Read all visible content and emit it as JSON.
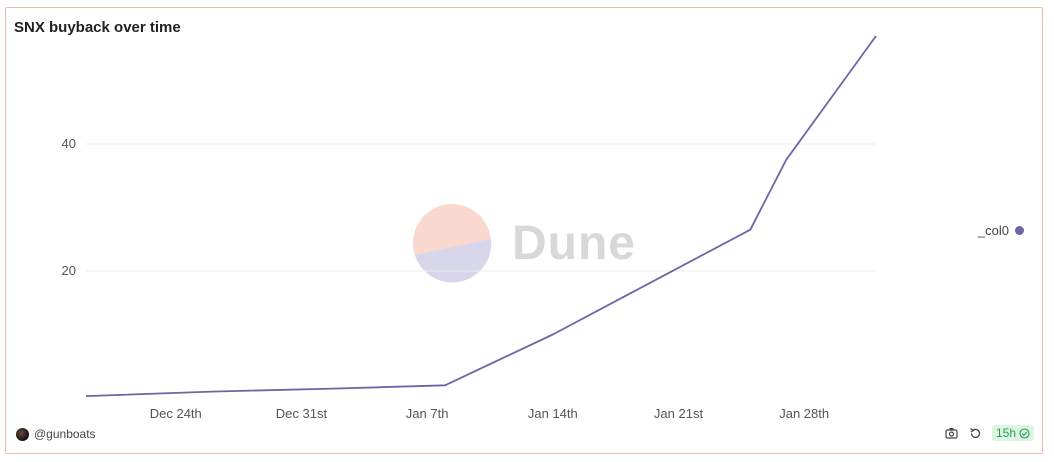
{
  "header": {
    "title": "SNX buyback over time"
  },
  "footer": {
    "user": "@gunboats",
    "age": "15h"
  },
  "watermark": {
    "text": "Dune"
  },
  "colors": {
    "line": "#6f64a6",
    "grid": "#ececec",
    "axis_text": "#555555",
    "border": "#f0b9a8",
    "badge_text": "#2a9a4f"
  },
  "icons": {
    "camera": "camera-icon",
    "refresh": "refresh-icon",
    "check": "check-circle-icon"
  },
  "chart_data": {
    "type": "line",
    "title": "SNX buyback over time",
    "xlabel": "",
    "ylabel": "",
    "x_range": [
      "2023-12-19",
      "2024-02-01"
    ],
    "ylim": [
      0,
      57
    ],
    "y_ticks": [
      20,
      40
    ],
    "x_ticks": [
      {
        "date": "2023-12-24",
        "label": "Dec 24th"
      },
      {
        "date": "2023-12-31",
        "label": "Dec 31st"
      },
      {
        "date": "2024-01-07",
        "label": "Jan 7th"
      },
      {
        "date": "2024-01-14",
        "label": "Jan 14th"
      },
      {
        "date": "2024-01-21",
        "label": "Jan 21st"
      },
      {
        "date": "2024-01-28",
        "label": "Jan 28th"
      }
    ],
    "grid": true,
    "legend": "right",
    "series": [
      {
        "name": "_col0",
        "x": [
          "2023-12-19",
          "2023-12-26",
          "2024-01-02",
          "2024-01-08",
          "2024-01-14",
          "2024-01-20",
          "2024-01-25",
          "2024-01-27",
          "2024-02-01"
        ],
        "values": [
          0.3,
          1.0,
          1.5,
          2.0,
          10.0,
          19.0,
          26.5,
          37.5,
          57.0
        ]
      }
    ]
  }
}
